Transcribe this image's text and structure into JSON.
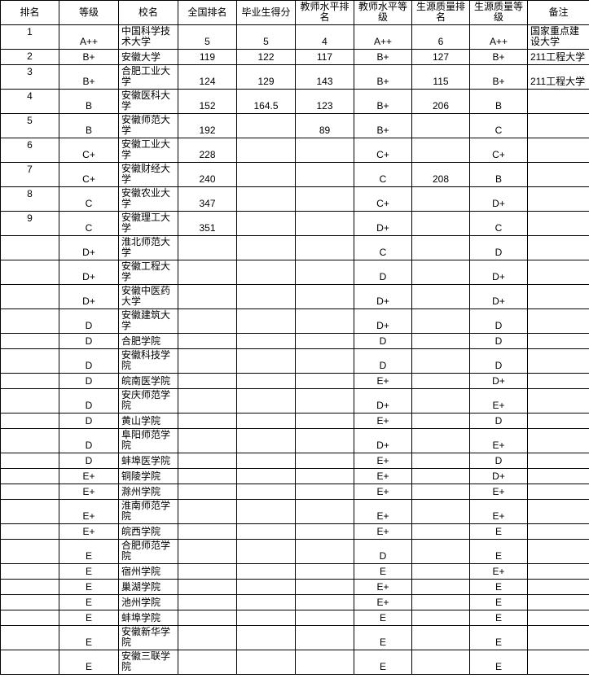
{
  "colors": {
    "background": "#ffffff",
    "border": "#000000",
    "text": "#000000"
  },
  "table": {
    "headers": [
      "排名",
      "等级",
      "校名",
      "全国排名",
      "毕业生得分",
      "教师水平排名",
      "教师水平等级",
      "生源质量排名",
      "生源质量等级",
      "备注"
    ],
    "rows": [
      {
        "rank": "1",
        "grade": "A++",
        "school": "中国科学技术大学",
        "national_rank": "5",
        "graduate_score": "5",
        "teacher_level_rank": "4",
        "teacher_level_grade": "A++",
        "source_quality_rank": "6",
        "source_quality_grade": "A++",
        "remark": "国家重点建设大学"
      },
      {
        "rank": "2",
        "grade": "B+",
        "school": "安徽大学",
        "national_rank": "119",
        "graduate_score": "122",
        "teacher_level_rank": "117",
        "teacher_level_grade": "B+",
        "source_quality_rank": "127",
        "source_quality_grade": "B+",
        "remark": "211工程大学"
      },
      {
        "rank": "3",
        "grade": "B+",
        "school": "合肥工业大学",
        "national_rank": "124",
        "graduate_score": "129",
        "teacher_level_rank": "143",
        "teacher_level_grade": "B+",
        "source_quality_rank": "115",
        "source_quality_grade": "B+",
        "remark": "211工程大学"
      },
      {
        "rank": "4",
        "grade": "B",
        "school": "安徽医科大学",
        "national_rank": "152",
        "graduate_score": "164.5",
        "teacher_level_rank": "123",
        "teacher_level_grade": "B+",
        "source_quality_rank": "206",
        "source_quality_grade": "B",
        "remark": ""
      },
      {
        "rank": "5",
        "grade": "B",
        "school": "安徽师范大学",
        "national_rank": "192",
        "graduate_score": "",
        "teacher_level_rank": "89",
        "teacher_level_grade": "B+",
        "source_quality_rank": "",
        "source_quality_grade": "C",
        "remark": ""
      },
      {
        "rank": "6",
        "grade": "C+",
        "school": "安徽工业大学",
        "national_rank": "228",
        "graduate_score": "",
        "teacher_level_rank": "",
        "teacher_level_grade": "C+",
        "source_quality_rank": "",
        "source_quality_grade": "C+",
        "remark": ""
      },
      {
        "rank": "7",
        "grade": "C+",
        "school": "安徽财经大学",
        "national_rank": "240",
        "graduate_score": "",
        "teacher_level_rank": "",
        "teacher_level_grade": "C",
        "source_quality_rank": "208",
        "source_quality_grade": "B",
        "remark": ""
      },
      {
        "rank": "8",
        "grade": "C",
        "school": "安徽农业大学",
        "national_rank": "347",
        "graduate_score": "",
        "teacher_level_rank": "",
        "teacher_level_grade": "C+",
        "source_quality_rank": "",
        "source_quality_grade": "D+",
        "remark": ""
      },
      {
        "rank": "9",
        "grade": "C",
        "school": "安徽理工大学",
        "national_rank": "351",
        "graduate_score": "",
        "teacher_level_rank": "",
        "teacher_level_grade": "D+",
        "source_quality_rank": "",
        "source_quality_grade": "C",
        "remark": ""
      },
      {
        "rank": "",
        "grade": "D+",
        "school": "淮北师范大学",
        "national_rank": "",
        "graduate_score": "",
        "teacher_level_rank": "",
        "teacher_level_grade": "C",
        "source_quality_rank": "",
        "source_quality_grade": "D",
        "remark": ""
      },
      {
        "rank": "",
        "grade": "D+",
        "school": "安徽工程大学",
        "national_rank": "",
        "graduate_score": "",
        "teacher_level_rank": "",
        "teacher_level_grade": "D",
        "source_quality_rank": "",
        "source_quality_grade": "D+",
        "remark": ""
      },
      {
        "rank": "",
        "grade": "D+",
        "school": "安徽中医药大学",
        "national_rank": "",
        "graduate_score": "",
        "teacher_level_rank": "",
        "teacher_level_grade": "D+",
        "source_quality_rank": "",
        "source_quality_grade": "D+",
        "remark": ""
      },
      {
        "rank": "",
        "grade": "D",
        "school": "安徽建筑大学",
        "national_rank": "",
        "graduate_score": "",
        "teacher_level_rank": "",
        "teacher_level_grade": "D+",
        "source_quality_rank": "",
        "source_quality_grade": "D",
        "remark": ""
      },
      {
        "rank": "",
        "grade": "D",
        "school": "合肥学院",
        "national_rank": "",
        "graduate_score": "",
        "teacher_level_rank": "",
        "teacher_level_grade": "D",
        "source_quality_rank": "",
        "source_quality_grade": "D",
        "remark": ""
      },
      {
        "rank": "",
        "grade": "D",
        "school": "安徽科技学院",
        "national_rank": "",
        "graduate_score": "",
        "teacher_level_rank": "",
        "teacher_level_grade": "D",
        "source_quality_rank": "",
        "source_quality_grade": "D",
        "remark": ""
      },
      {
        "rank": "",
        "grade": "D",
        "school": "皖南医学院",
        "national_rank": "",
        "graduate_score": "",
        "teacher_level_rank": "",
        "teacher_level_grade": "E+",
        "source_quality_rank": "",
        "source_quality_grade": "D+",
        "remark": ""
      },
      {
        "rank": "",
        "grade": "D",
        "school": "安庆师范学院",
        "national_rank": "",
        "graduate_score": "",
        "teacher_level_rank": "",
        "teacher_level_grade": "D+",
        "source_quality_rank": "",
        "source_quality_grade": "E+",
        "remark": ""
      },
      {
        "rank": "",
        "grade": "D",
        "school": "黄山学院",
        "national_rank": "",
        "graduate_score": "",
        "teacher_level_rank": "",
        "teacher_level_grade": "E+",
        "source_quality_rank": "",
        "source_quality_grade": "D",
        "remark": ""
      },
      {
        "rank": "",
        "grade": "D",
        "school": "阜阳师范学院",
        "national_rank": "",
        "graduate_score": "",
        "teacher_level_rank": "",
        "teacher_level_grade": "D+",
        "source_quality_rank": "",
        "source_quality_grade": "E+",
        "remark": ""
      },
      {
        "rank": "",
        "grade": "D",
        "school": "蚌埠医学院",
        "national_rank": "",
        "graduate_score": "",
        "teacher_level_rank": "",
        "teacher_level_grade": "E+",
        "source_quality_rank": "",
        "source_quality_grade": "D",
        "remark": ""
      },
      {
        "rank": "",
        "grade": "E+",
        "school": "铜陵学院",
        "national_rank": "",
        "graduate_score": "",
        "teacher_level_rank": "",
        "teacher_level_grade": "E+",
        "source_quality_rank": "",
        "source_quality_grade": "D+",
        "remark": ""
      },
      {
        "rank": "",
        "grade": "E+",
        "school": "滁州学院",
        "national_rank": "",
        "graduate_score": "",
        "teacher_level_rank": "",
        "teacher_level_grade": "E+",
        "source_quality_rank": "",
        "source_quality_grade": "E+",
        "remark": ""
      },
      {
        "rank": "",
        "grade": "E+",
        "school": "淮南师范学院",
        "national_rank": "",
        "graduate_score": "",
        "teacher_level_rank": "",
        "teacher_level_grade": "E+",
        "source_quality_rank": "",
        "source_quality_grade": "E+",
        "remark": ""
      },
      {
        "rank": "",
        "grade": "E+",
        "school": "皖西学院",
        "national_rank": "",
        "graduate_score": "",
        "teacher_level_rank": "",
        "teacher_level_grade": "E+",
        "source_quality_rank": "",
        "source_quality_grade": "E",
        "remark": ""
      },
      {
        "rank": "",
        "grade": "E",
        "school": "合肥师范学院",
        "national_rank": "",
        "graduate_score": "",
        "teacher_level_rank": "",
        "teacher_level_grade": "D",
        "source_quality_rank": "",
        "source_quality_grade": "E",
        "remark": ""
      },
      {
        "rank": "",
        "grade": "E",
        "school": "宿州学院",
        "national_rank": "",
        "graduate_score": "",
        "teacher_level_rank": "",
        "teacher_level_grade": "E",
        "source_quality_rank": "",
        "source_quality_grade": "E+",
        "remark": ""
      },
      {
        "rank": "",
        "grade": "E",
        "school": "巢湖学院",
        "national_rank": "",
        "graduate_score": "",
        "teacher_level_rank": "",
        "teacher_level_grade": "E+",
        "source_quality_rank": "",
        "source_quality_grade": "E",
        "remark": ""
      },
      {
        "rank": "",
        "grade": "E",
        "school": "池州学院",
        "national_rank": "",
        "graduate_score": "",
        "teacher_level_rank": "",
        "teacher_level_grade": "E+",
        "source_quality_rank": "",
        "source_quality_grade": "E",
        "remark": ""
      },
      {
        "rank": "",
        "grade": "E",
        "school": "蚌埠学院",
        "national_rank": "",
        "graduate_score": "",
        "teacher_level_rank": "",
        "teacher_level_grade": "E",
        "source_quality_rank": "",
        "source_quality_grade": "E",
        "remark": ""
      },
      {
        "rank": "",
        "grade": "E",
        "school": "安徽新华学院",
        "national_rank": "",
        "graduate_score": "",
        "teacher_level_rank": "",
        "teacher_level_grade": "E",
        "source_quality_rank": "",
        "source_quality_grade": "E",
        "remark": ""
      },
      {
        "rank": "",
        "grade": "E",
        "school": "安徽三联学院",
        "national_rank": "",
        "graduate_score": "",
        "teacher_level_rank": "",
        "teacher_level_grade": "E",
        "source_quality_rank": "",
        "source_quality_grade": "E",
        "remark": ""
      }
    ]
  }
}
